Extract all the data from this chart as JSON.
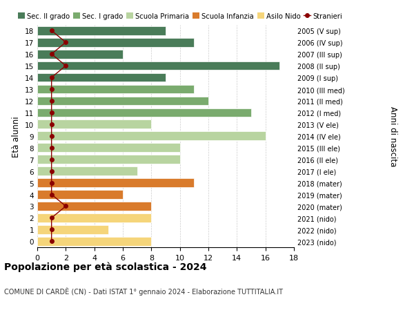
{
  "ages": [
    18,
    17,
    16,
    15,
    14,
    13,
    12,
    11,
    10,
    9,
    8,
    7,
    6,
    5,
    4,
    3,
    2,
    1,
    0
  ],
  "right_labels": [
    "2005 (V sup)",
    "2006 (IV sup)",
    "2007 (III sup)",
    "2008 (II sup)",
    "2009 (I sup)",
    "2010 (III med)",
    "2011 (II med)",
    "2012 (I med)",
    "2013 (V ele)",
    "2014 (IV ele)",
    "2015 (III ele)",
    "2016 (II ele)",
    "2017 (I ele)",
    "2018 (mater)",
    "2019 (mater)",
    "2020 (mater)",
    "2021 (nido)",
    "2022 (nido)",
    "2023 (nido)"
  ],
  "bar_values": [
    9,
    11,
    6,
    17,
    9,
    11,
    12,
    15,
    8,
    16,
    10,
    10,
    7,
    11,
    6,
    8,
    8,
    5,
    8
  ],
  "bar_colors": [
    "#4a7c59",
    "#4a7c59",
    "#4a7c59",
    "#4a7c59",
    "#4a7c59",
    "#7aab6e",
    "#7aab6e",
    "#7aab6e",
    "#b8d4a0",
    "#b8d4a0",
    "#b8d4a0",
    "#b8d4a0",
    "#b8d4a0",
    "#d97b2c",
    "#d97b2c",
    "#d97b2c",
    "#f5d57a",
    "#f5d57a",
    "#f5d57a"
  ],
  "stranieri_values": [
    1,
    2,
    1,
    2,
    1,
    1,
    1,
    1,
    1,
    1,
    1,
    1,
    1,
    1,
    1,
    2,
    1,
    1,
    1
  ],
  "stranieri_color": "#8b0000",
  "legend_items": [
    {
      "label": "Sec. II grado",
      "color": "#4a7c59"
    },
    {
      "label": "Sec. I grado",
      "color": "#7aab6e"
    },
    {
      "label": "Scuola Primaria",
      "color": "#b8d4a0"
    },
    {
      "label": "Scuola Infanzia",
      "color": "#d97b2c"
    },
    {
      "label": "Asilo Nido",
      "color": "#f5d57a"
    },
    {
      "label": "Stranieri",
      "color": "#8b0000"
    }
  ],
  "ylabel_left": "Età alunni",
  "ylabel_right": "Anni di nascita",
  "title": "Popolazione per età scolastica - 2024",
  "subtitle": "COMUNE DI CARDÈ (CN) - Dati ISTAT 1° gennaio 2024 - Elaborazione TUTTITALIA.IT",
  "xlim": [
    0,
    18
  ],
  "xticks": [
    0,
    2,
    4,
    6,
    8,
    10,
    12,
    14,
    16,
    18
  ],
  "bg_color": "#ffffff",
  "grid_color": "#cccccc"
}
